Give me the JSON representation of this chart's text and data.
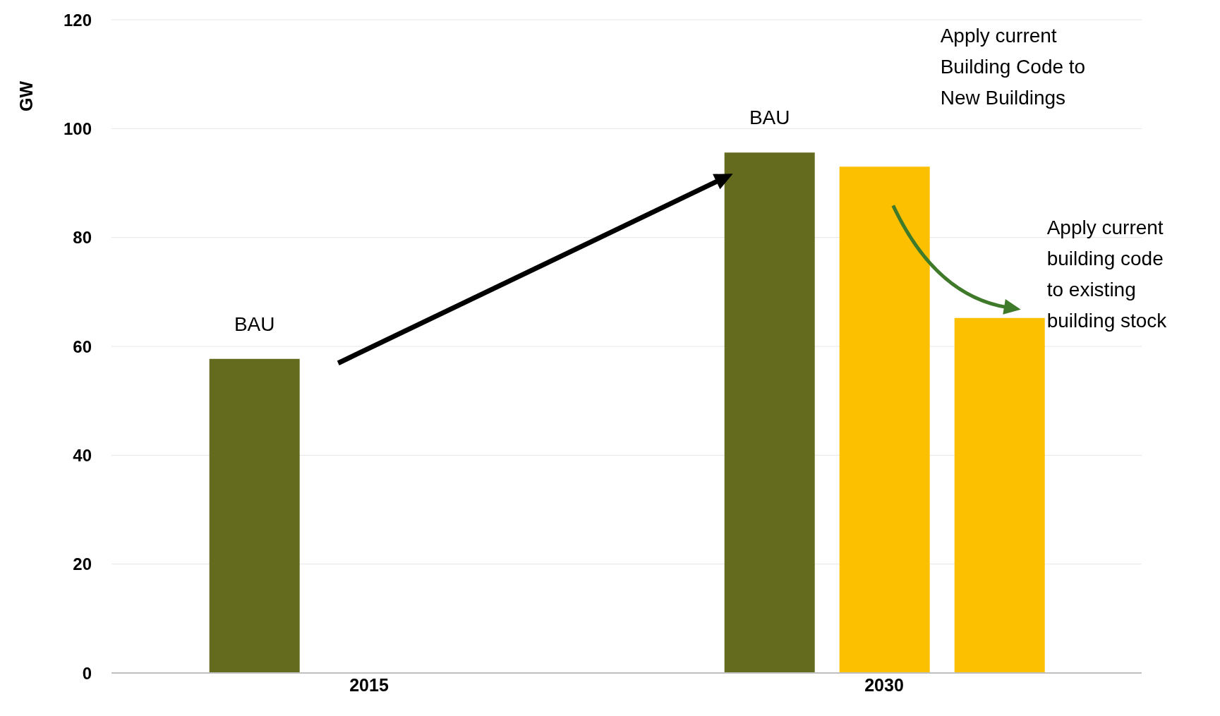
{
  "chart_data": {
    "type": "bar",
    "ylabel": "GW",
    "categories": [
      "2015",
      "2030"
    ],
    "series": [
      {
        "name": "BAU",
        "color": "#646b1e",
        "values": [
          57.7,
          95.6
        ]
      },
      {
        "name": "Apply current Building Code to New Buildings",
        "color": "#fdc000",
        "values": [
          null,
          93
        ]
      },
      {
        "name": "Apply current building code to existing building stock",
        "color": "#fdc000",
        "values": [
          null,
          65.2
        ]
      }
    ],
    "ylim": [
      0,
      120
    ],
    "yticks": [
      0,
      20,
      40,
      60,
      80,
      100,
      120
    ],
    "grid": "y",
    "legend": false
  }
}
